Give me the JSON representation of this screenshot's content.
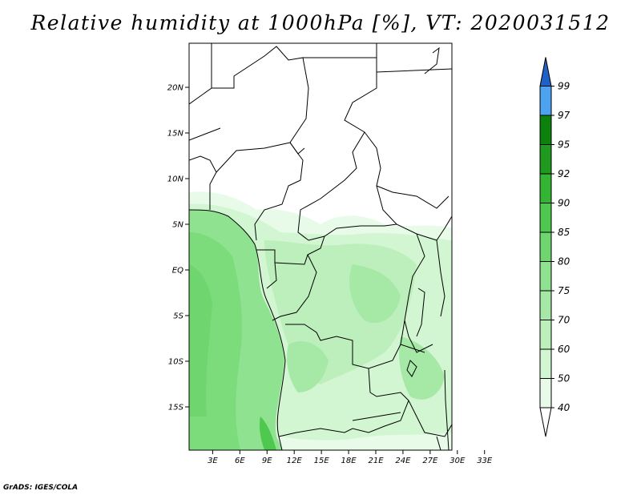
{
  "title": "Relative humidity at 1000hPa [%], VT: 2020031512",
  "credit": "GrADS: IGES/COLA",
  "map": {
    "lat_labels": [
      "20N",
      "15N",
      "10N",
      "5N",
      "EQ",
      "5S",
      "10S",
      "15S"
    ],
    "lat_values": [
      20,
      15,
      10,
      5,
      0,
      -5,
      -10,
      -15
    ],
    "lon_labels": [
      "3E",
      "6E",
      "9E",
      "12E",
      "15E",
      "18E",
      "21E",
      "24E",
      "27E",
      "30E",
      "33E"
    ],
    "lon_values": [
      3,
      6,
      9,
      12,
      15,
      18,
      21,
      24,
      27,
      30,
      33
    ]
  },
  "colorbar": {
    "labels": [
      "40",
      "50",
      "60",
      "70",
      "75",
      "80",
      "85",
      "90",
      "92",
      "95",
      "97",
      "99"
    ],
    "colors": [
      "#ffffff",
      "#e8fbe8",
      "#d2f5d2",
      "#bcefbc",
      "#a6e8a6",
      "#8fe28f",
      "#6fd66f",
      "#4fc84f",
      "#33b533",
      "#1f9a1f",
      "#0c820c",
      "#4da3ef",
      "#2f83dc",
      "#1e62c8"
    ]
  }
}
